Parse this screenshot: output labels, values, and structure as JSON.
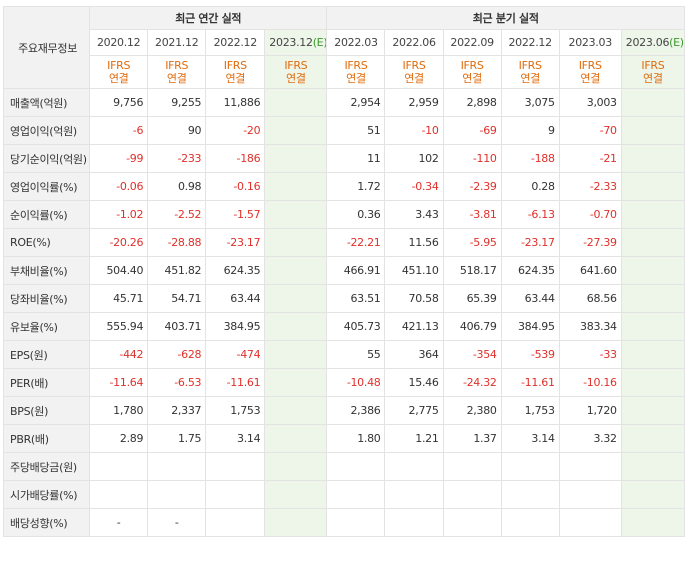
{
  "table": {
    "corner_label": "주요재무정보",
    "group_annual": "최근 연간 실적",
    "group_quarter": "최근 분기 실적",
    "annual_dates": [
      "2020.12",
      "2021.12",
      "2022.12",
      "2023.12"
    ],
    "annual_est_suffix": "(E)",
    "quarter_dates": [
      "2022.03",
      "2022.06",
      "2022.09",
      "2022.12",
      "2023.03",
      "2023.06"
    ],
    "quarter_est_suffix": "(E)",
    "ifrs_top": "IFRS",
    "ifrs_bottom": "연결",
    "rows": [
      {
        "label": "매출액(억원)",
        "values": [
          "9,756",
          "9,255",
          "11,886",
          "",
          "2,954",
          "2,959",
          "2,898",
          "3,075",
          "3,003",
          ""
        ]
      },
      {
        "label": "영업이익(억원)",
        "values": [
          "-6",
          "90",
          "-20",
          "",
          "51",
          "-10",
          "-69",
          "9",
          "-70",
          ""
        ]
      },
      {
        "label": "당기순이익(억원)",
        "values": [
          "-99",
          "-233",
          "-186",
          "",
          "11",
          "102",
          "-110",
          "-188",
          "-21",
          ""
        ]
      },
      {
        "label": "영업이익률(%)",
        "values": [
          "-0.06",
          "0.98",
          "-0.16",
          "",
          "1.72",
          "-0.34",
          "-2.39",
          "0.28",
          "-2.33",
          ""
        ]
      },
      {
        "label": "순이익률(%)",
        "values": [
          "-1.02",
          "-2.52",
          "-1.57",
          "",
          "0.36",
          "3.43",
          "-3.81",
          "-6.13",
          "-0.70",
          ""
        ]
      },
      {
        "label": "ROE(%)",
        "values": [
          "-20.26",
          "-28.88",
          "-23.17",
          "",
          "-22.21",
          "11.56",
          "-5.95",
          "-23.17",
          "-27.39",
          ""
        ]
      },
      {
        "label": "부채비율(%)",
        "values": [
          "504.40",
          "451.82",
          "624.35",
          "",
          "466.91",
          "451.10",
          "518.17",
          "624.35",
          "641.60",
          ""
        ]
      },
      {
        "label": "당좌비율(%)",
        "values": [
          "45.71",
          "54.71",
          "63.44",
          "",
          "63.51",
          "70.58",
          "65.39",
          "63.44",
          "68.56",
          ""
        ]
      },
      {
        "label": "유보율(%)",
        "values": [
          "555.94",
          "403.71",
          "384.95",
          "",
          "405.73",
          "421.13",
          "406.79",
          "384.95",
          "383.34",
          ""
        ]
      },
      {
        "label": "EPS(원)",
        "values": [
          "-442",
          "-628",
          "-474",
          "",
          "55",
          "364",
          "-354",
          "-539",
          "-33",
          ""
        ]
      },
      {
        "label": "PER(배)",
        "values": [
          "-11.64",
          "-6.53",
          "-11.61",
          "",
          "-10.48",
          "15.46",
          "-24.32",
          "-11.61",
          "-10.16",
          ""
        ]
      },
      {
        "label": "BPS(원)",
        "values": [
          "1,780",
          "2,337",
          "1,753",
          "",
          "2,386",
          "2,775",
          "2,380",
          "1,753",
          "1,720",
          ""
        ]
      },
      {
        "label": "PBR(배)",
        "values": [
          "2.89",
          "1.75",
          "3.14",
          "",
          "1.80",
          "1.21",
          "1.37",
          "3.14",
          "3.32",
          ""
        ]
      },
      {
        "label": "주당배당금(원)",
        "values": [
          "",
          "",
          "",
          "",
          "",
          "",
          "",
          "",
          "",
          ""
        ]
      },
      {
        "label": "시가배당률(%)",
        "values": [
          "",
          "",
          "",
          "",
          "",
          "",
          "",
          "",
          "",
          ""
        ]
      },
      {
        "label": "배당성향(%)",
        "values": [
          "-",
          "-",
          "",
          "",
          "",
          "",
          "",
          "",
          "",
          ""
        ]
      }
    ]
  },
  "colors": {
    "negative": "#e0302a",
    "ifrs": "#e06b0c",
    "estimate_bg": "#eef6ea",
    "estimate_mark": "#3a9b2b"
  }
}
